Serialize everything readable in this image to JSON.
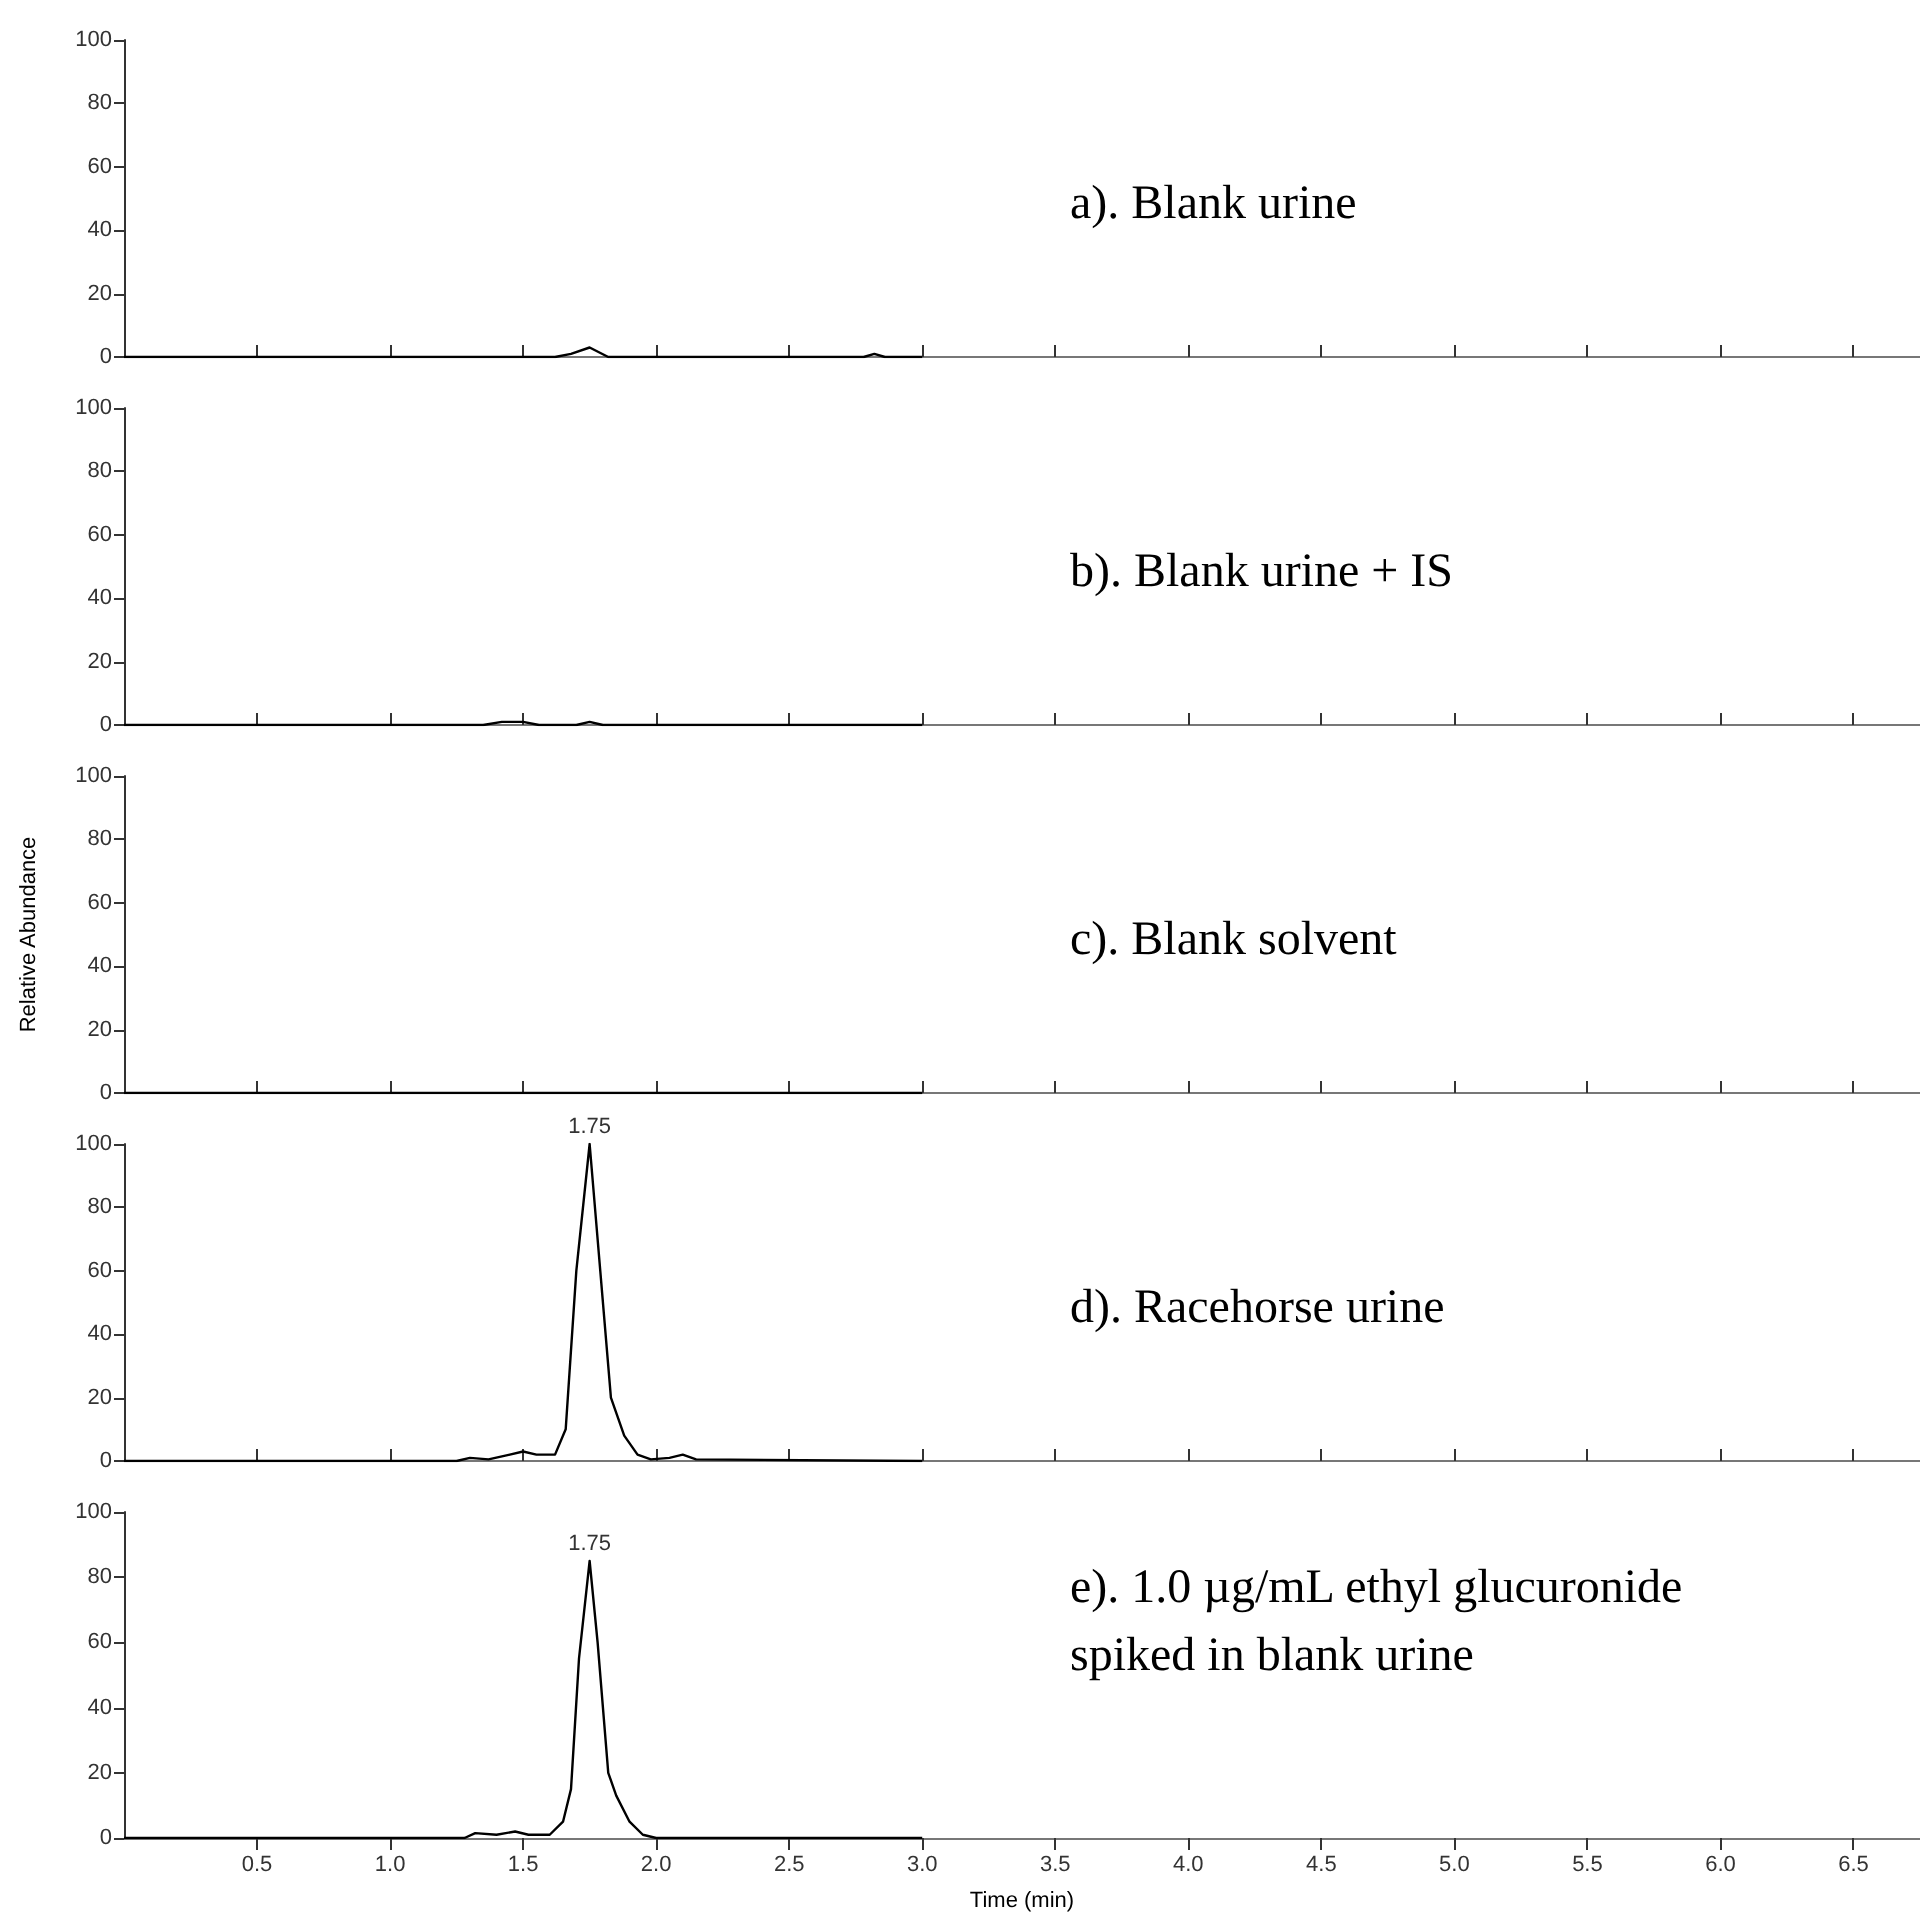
{
  "chart_data": [
    {
      "type": "line",
      "title": "a). Blank urine",
      "x": [
        0,
        1.62,
        1.68,
        1.75,
        1.82,
        2.78,
        2.82,
        2.86,
        3.0
      ],
      "series": [
        {
          "color": "#000000",
          "values": [
            0,
            0,
            1,
            3,
            0,
            0,
            1,
            0,
            0
          ]
        }
      ],
      "xlim": [
        0,
        6.75
      ],
      "xticks": [
        0.5,
        1,
        1.5,
        2,
        2.5,
        3,
        3.5,
        4,
        4.5,
        5,
        5.5,
        6,
        6.5
      ],
      "ylim": [
        0,
        100
      ],
      "yticks": [
        0,
        20,
        40,
        60,
        80,
        100
      ],
      "tick_labels": "y",
      "marker": "none",
      "line_style": "solid",
      "grid": false
    },
    {
      "type": "line",
      "title": "b). Blank urine + IS",
      "x": [
        0,
        1.35,
        1.42,
        1.5,
        1.56,
        1.7,
        1.75,
        1.8,
        3.0
      ],
      "series": [
        {
          "color": "#000000",
          "values": [
            0,
            0,
            1,
            1,
            0,
            0,
            1,
            0,
            0
          ]
        }
      ],
      "xlim": [
        0,
        6.75
      ],
      "xticks": [
        0.5,
        1,
        1.5,
        2,
        2.5,
        3,
        3.5,
        4,
        4.5,
        5,
        5.5,
        6,
        6.5
      ],
      "ylim": [
        0,
        100
      ],
      "yticks": [
        0,
        20,
        40,
        60,
        80,
        100
      ],
      "tick_labels": "y",
      "marker": "none",
      "line_style": "solid",
      "grid": false
    },
    {
      "type": "line",
      "title": "c). Blank solvent",
      "ylabel": "Relative Abundance",
      "x": [
        0,
        3.0
      ],
      "series": [
        {
          "color": "#000000",
          "values": [
            0,
            0
          ]
        }
      ],
      "xlim": [
        0,
        6.75
      ],
      "xticks": [
        0.5,
        1,
        1.5,
        2,
        2.5,
        3,
        3.5,
        4,
        4.5,
        5,
        5.5,
        6,
        6.5
      ],
      "ylim": [
        0,
        100
      ],
      "yticks": [
        0,
        20,
        40,
        60,
        80,
        100
      ],
      "tick_labels": "y",
      "marker": "none",
      "line_style": "solid",
      "grid": false
    },
    {
      "type": "line",
      "title": "d). Racehorse urine",
      "annotations": [
        {
          "text": "1.75",
          "x": 1.75,
          "y": 100
        }
      ],
      "x": [
        0,
        1.25,
        1.3,
        1.37,
        1.45,
        1.5,
        1.55,
        1.62,
        1.66,
        1.7,
        1.75,
        1.79,
        1.83,
        1.88,
        1.93,
        1.98,
        2.05,
        2.1,
        2.15,
        3.0
      ],
      "series": [
        {
          "color": "#000000",
          "values": [
            0,
            0,
            1,
            0.5,
            2,
            3,
            2,
            2,
            10,
            60,
            100,
            60,
            20,
            8,
            2,
            0.5,
            1,
            2,
            0.5,
            0
          ]
        }
      ],
      "xlim": [
        0,
        6.75
      ],
      "xticks": [
        0.5,
        1,
        1.5,
        2,
        2.5,
        3,
        3.5,
        4,
        4.5,
        5,
        5.5,
        6,
        6.5
      ],
      "ylim": [
        0,
        100
      ],
      "yticks": [
        0,
        20,
        40,
        60,
        80,
        100
      ],
      "tick_labels": "y",
      "marker": "none",
      "line_style": "solid",
      "grid": false
    },
    {
      "type": "line",
      "title": "e). 1.0 µg/mL ethyl glucuronide spiked in blank urine",
      "xlabel": "Time (min)",
      "annotations": [
        {
          "text": "1.75",
          "x": 1.75,
          "y": 85
        }
      ],
      "x": [
        0,
        1.28,
        1.32,
        1.4,
        1.47,
        1.52,
        1.6,
        1.65,
        1.68,
        1.71,
        1.75,
        1.78,
        1.82,
        1.85,
        1.9,
        1.95,
        2.0,
        3.0
      ],
      "series": [
        {
          "color": "#000000",
          "values": [
            0,
            0,
            1.5,
            1,
            2,
            1,
            1,
            5,
            15,
            55,
            85,
            60,
            20,
            13,
            5,
            1,
            0,
            0
          ]
        }
      ],
      "xlim": [
        0,
        6.75
      ],
      "xticks": [
        0.5,
        {
          "value": 1,
          "label": "1.0"
        },
        1.5,
        {
          "value": 2,
          "label": "2.0"
        },
        2.5,
        {
          "value": 3,
          "label": "3.0"
        },
        3.5,
        {
          "value": 4,
          "label": "4.0"
        },
        4.5,
        {
          "value": 5,
          "label": "5.0"
        },
        5.5,
        {
          "value": 6,
          "label": "6.0"
        },
        6.5
      ],
      "ylim": [
        0,
        100
      ],
      "yticks": [
        0,
        20,
        40,
        60,
        80,
        100
      ],
      "marker": "none",
      "line_style": "solid",
      "grid": false
    }
  ]
}
